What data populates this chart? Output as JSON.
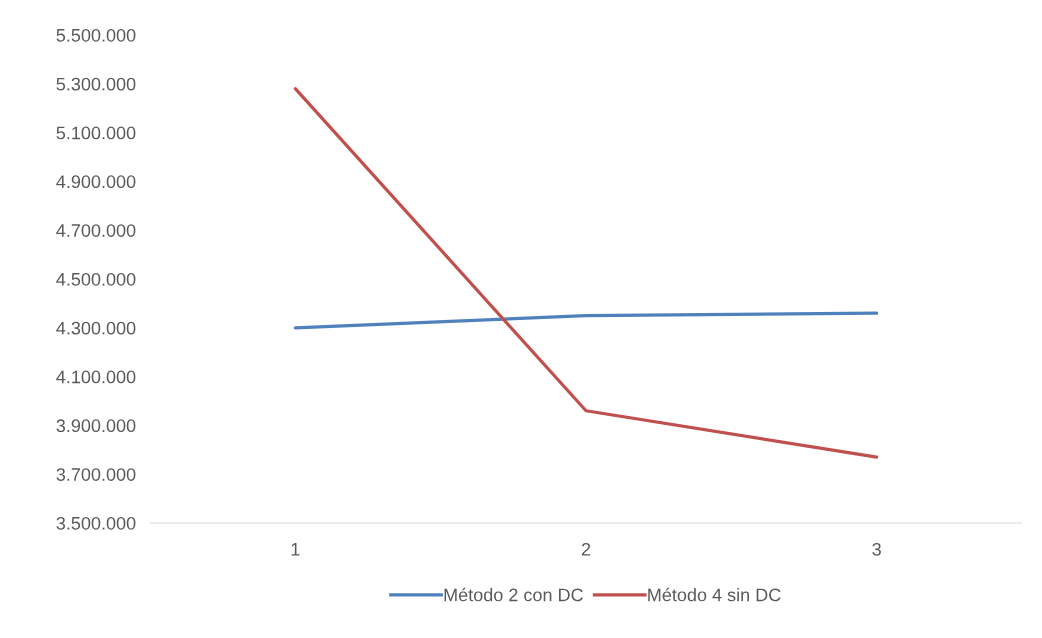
{
  "chart_data": {
    "type": "line",
    "categories": [
      "1",
      "2",
      "3"
    ],
    "series": [
      {
        "name": "Método 2 con DC",
        "color": "#4f81bd",
        "values": [
          4300000,
          4350000,
          4360000
        ]
      },
      {
        "name": "Método 4 sin DC",
        "color": "#c0504d",
        "values": [
          5280000,
          3960000,
          3770000
        ]
      }
    ],
    "ylim": [
      3500000,
      5500000
    ],
    "yticks": [
      {
        "value": 3500000,
        "label": "3.500.000"
      },
      {
        "value": 3700000,
        "label": "3.700.000"
      },
      {
        "value": 3900000,
        "label": "3.900.000"
      },
      {
        "value": 4100000,
        "label": "4.100.000"
      },
      {
        "value": 4300000,
        "label": "4.300.000"
      },
      {
        "value": 4500000,
        "label": "4.500.000"
      },
      {
        "value": 4700000,
        "label": "4.700.000"
      },
      {
        "value": 4900000,
        "label": "4.900.000"
      },
      {
        "value": 5100000,
        "label": "5.100.000"
      },
      {
        "value": 5300000,
        "label": "5.300.000"
      },
      {
        "value": 5500000,
        "label": "5.500.000"
      }
    ],
    "grid": false,
    "legend": "bottom",
    "marker": "none",
    "line_style": "solid"
  }
}
